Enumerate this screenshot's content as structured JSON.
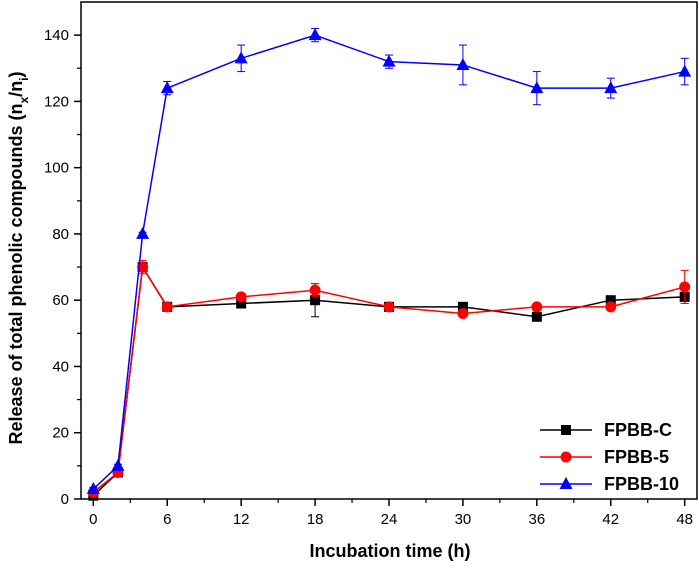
{
  "chart_data": {
    "type": "line",
    "title": "",
    "xlabel": "Incubation time (h)",
    "ylabel": "Release of total phenolic compounds (n",
    "ylabel_sub1": "x",
    "ylabel_mid": "/n",
    "ylabel_sub2": "i",
    "ylabel_end": ")",
    "x": [
      0,
      2,
      4,
      6,
      12,
      18,
      24,
      30,
      36,
      42,
      48
    ],
    "x_ticks": [
      "0",
      "6",
      "12",
      "18",
      "24",
      "30",
      "36",
      "42",
      "48"
    ],
    "y_ticks": [
      "0",
      "20",
      "40",
      "60",
      "80",
      "100",
      "120",
      "140"
    ],
    "xlim": [
      -1,
      49
    ],
    "ylim": [
      0,
      150
    ],
    "grid": false,
    "legend_position": "bottom-right",
    "series": [
      {
        "name": "FPBB-C",
        "color": "#000000",
        "marker": "square",
        "values": [
          1,
          8,
          70,
          58,
          59,
          60,
          58,
          58,
          55,
          60,
          61
        ],
        "errors": [
          0.5,
          0.5,
          1,
          1,
          0.5,
          5,
          0.5,
          1,
          0.5,
          1,
          2
        ]
      },
      {
        "name": "FPBB-5",
        "color": "#ff0000",
        "marker": "circle",
        "values": [
          2,
          8,
          70,
          58,
          61,
          63,
          58,
          56,
          58,
          58,
          64
        ],
        "errors": [
          0.5,
          0.5,
          2,
          1,
          1,
          2,
          0.5,
          1,
          0.5,
          0.5,
          5
        ]
      },
      {
        "name": "FPBB-10",
        "color": "#0000ff",
        "marker": "triangle",
        "values": [
          3,
          10,
          80,
          124,
          133,
          140,
          132,
          131,
          124,
          124,
          129
        ],
        "errors": [
          0.5,
          0.5,
          0.5,
          2,
          4,
          2,
          2,
          6,
          5,
          3,
          4
        ]
      }
    ]
  }
}
